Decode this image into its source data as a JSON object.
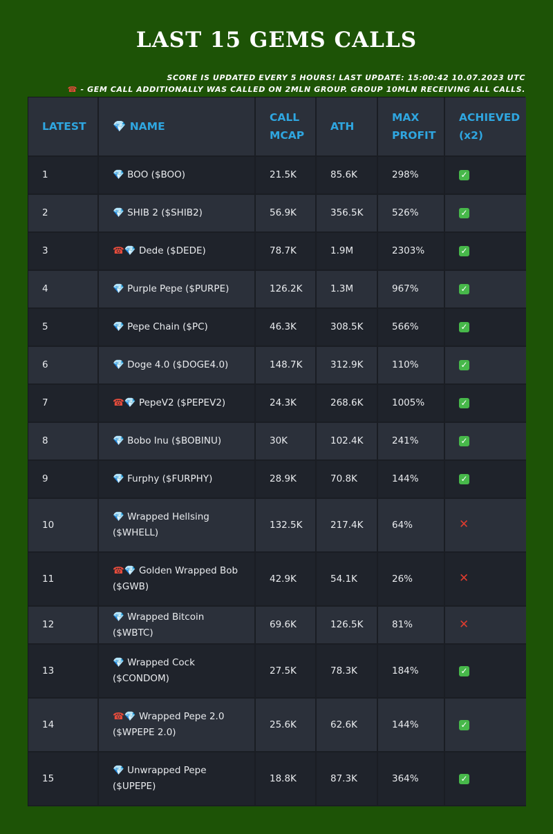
{
  "title": "LAST 15 GEMS CALLS",
  "notes": {
    "line1": "SCORE IS UPDATED EVERY 5 HOURS! LAST UPDATE: 15:00:42 10.07.2023 UTC",
    "phone": "☎",
    "line2": " - GEM CALL ADDITIONALLY WAS CALLED ON 2MLN GROUP. GROUP 10MLN RECEIVING ALL CALLS."
  },
  "icons": {
    "gem": "💎",
    "phone": "☎",
    "check": "✓",
    "cross": "✕"
  },
  "colors": {
    "background": "#1d5306",
    "header_text": "#2fa6e0",
    "check": "#47b84a",
    "cross": "#e03c2f"
  },
  "table": {
    "headers": {
      "latest": "LATEST",
      "name": "💎 NAME",
      "call_mcap_1": "CALL",
      "call_mcap_2": "MCAP",
      "ath": "ATH",
      "max_profit_1": "MAX",
      "max_profit_2": "PROFIT",
      "achieved_1": "ACHIEVED",
      "achieved_2": "(x2)"
    },
    "rows": [
      {
        "latest": "1",
        "phone": false,
        "name": "BOO ($BOO)",
        "call_mcap": "21.5K",
        "ath": "85.6K",
        "max_profit": "298%",
        "achieved": true
      },
      {
        "latest": "2",
        "phone": false,
        "name": "SHIB 2 ($SHIB2)",
        "call_mcap": "56.9K",
        "ath": "356.5K",
        "max_profit": "526%",
        "achieved": true
      },
      {
        "latest": "3",
        "phone": true,
        "name": "Dede ($DEDE)",
        "call_mcap": "78.7K",
        "ath": "1.9M",
        "max_profit": "2303%",
        "achieved": true
      },
      {
        "latest": "4",
        "phone": false,
        "name": "Purple Pepe ($PURPE)",
        "call_mcap": "126.2K",
        "ath": "1.3M",
        "max_profit": "967%",
        "achieved": true
      },
      {
        "latest": "5",
        "phone": false,
        "name": "Pepe Chain ($PC)",
        "call_mcap": "46.3K",
        "ath": "308.5K",
        "max_profit": "566%",
        "achieved": true
      },
      {
        "latest": "6",
        "phone": false,
        "name": "Doge 4.0 ($DOGE4.0)",
        "call_mcap": "148.7K",
        "ath": "312.9K",
        "max_profit": "110%",
        "achieved": true
      },
      {
        "latest": "7",
        "phone": true,
        "name": "PepeV2 ($PEPEV2)",
        "call_mcap": "24.3K",
        "ath": "268.6K",
        "max_profit": "1005%",
        "achieved": true
      },
      {
        "latest": "8",
        "phone": false,
        "name": "Bobo Inu ($BOBINU)",
        "call_mcap": "30K",
        "ath": "102.4K",
        "max_profit": "241%",
        "achieved": true
      },
      {
        "latest": "9",
        "phone": false,
        "name": "Furphy ($FURPHY)",
        "call_mcap": "28.9K",
        "ath": "70.8K",
        "max_profit": "144%",
        "achieved": true
      },
      {
        "latest": "10",
        "phone": false,
        "name": "Wrapped Hellsing ($WHELL)",
        "call_mcap": "132.5K",
        "ath": "217.4K",
        "max_profit": "64%",
        "achieved": false
      },
      {
        "latest": "11",
        "phone": true,
        "name": "Golden Wrapped Bob ($GWB)",
        "call_mcap": "42.9K",
        "ath": "54.1K",
        "max_profit": "26%",
        "achieved": false
      },
      {
        "latest": "12",
        "phone": false,
        "name": "Wrapped Bitcoin ($WBTC)",
        "call_mcap": "69.6K",
        "ath": "126.5K",
        "max_profit": "81%",
        "achieved": false
      },
      {
        "latest": "13",
        "phone": false,
        "name": "Wrapped Cock ($CONDOM)",
        "call_mcap": "27.5K",
        "ath": "78.3K",
        "max_profit": "184%",
        "achieved": true
      },
      {
        "latest": "14",
        "phone": true,
        "name": "Wrapped Pepe 2.0 ($WPEPE 2.0)",
        "call_mcap": "25.6K",
        "ath": "62.6K",
        "max_profit": "144%",
        "achieved": true
      },
      {
        "latest": "15",
        "phone": false,
        "name": "Unwrapped Pepe ($UPEPE)",
        "call_mcap": "18.8K",
        "ath": "87.3K",
        "max_profit": "364%",
        "achieved": true
      }
    ]
  }
}
